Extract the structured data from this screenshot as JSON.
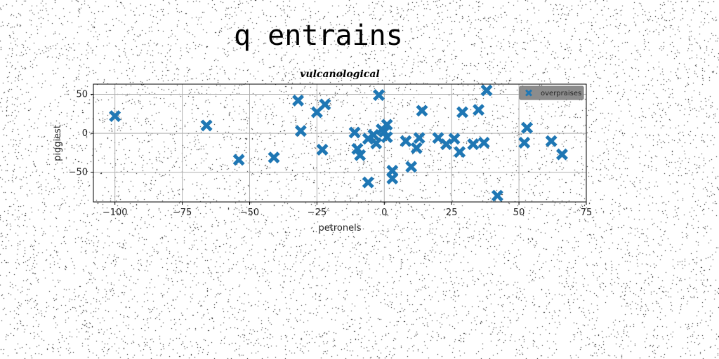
{
  "heading": "q entrains",
  "colors": {
    "marker": "#1f77b4",
    "legend_bg": "#8c8c8c",
    "grid": "#b0b0b0"
  },
  "chart_data": {
    "type": "scatter",
    "title": "vulcanological",
    "xlabel": "petronels",
    "ylabel": "piggiest",
    "xlim": [
      -108,
      75
    ],
    "ylim": [
      -88,
      63
    ],
    "grid": true,
    "legend_placement": "top-right",
    "marker": "x-filled",
    "xticks": [
      -100,
      -75,
      -50,
      -25,
      0,
      25,
      50,
      75
    ],
    "yticks": [
      50,
      0,
      -50
    ],
    "xtick_labels": [
      "−100",
      "−75",
      "−50",
      "−25",
      "0",
      "25",
      "50",
      "75"
    ],
    "ytick_labels": [
      "50",
      "0",
      "−50"
    ],
    "series": [
      {
        "name": "overpraises",
        "points": [
          [
            -100,
            22
          ],
          [
            -66,
            10
          ],
          [
            -54,
            -34
          ],
          [
            -41,
            -31
          ],
          [
            -32,
            42
          ],
          [
            -31,
            3
          ],
          [
            -25,
            27
          ],
          [
            -23,
            -21
          ],
          [
            -22,
            37
          ],
          [
            -11,
            1
          ],
          [
            -10,
            -20
          ],
          [
            -9,
            -28
          ],
          [
            -6,
            -63
          ],
          [
            -6,
            -7
          ],
          [
            -4,
            -2
          ],
          [
            -3,
            -13
          ],
          [
            -2,
            49
          ],
          [
            -1,
            5
          ],
          [
            0,
            2
          ],
          [
            1,
            11
          ],
          [
            1,
            -5
          ],
          [
            3,
            -48
          ],
          [
            3,
            -58
          ],
          [
            8,
            -10
          ],
          [
            10,
            -43
          ],
          [
            12,
            -19
          ],
          [
            13,
            -6
          ],
          [
            14,
            29
          ],
          [
            20,
            -6
          ],
          [
            23,
            -14
          ],
          [
            26,
            -7
          ],
          [
            28,
            -24
          ],
          [
            29,
            27
          ],
          [
            33,
            -14
          ],
          [
            35,
            30
          ],
          [
            37,
            -12
          ],
          [
            38,
            55
          ],
          [
            42,
            -80
          ],
          [
            52,
            -12
          ],
          [
            53,
            7
          ],
          [
            62,
            -10
          ],
          [
            66,
            -27
          ]
        ]
      }
    ]
  }
}
